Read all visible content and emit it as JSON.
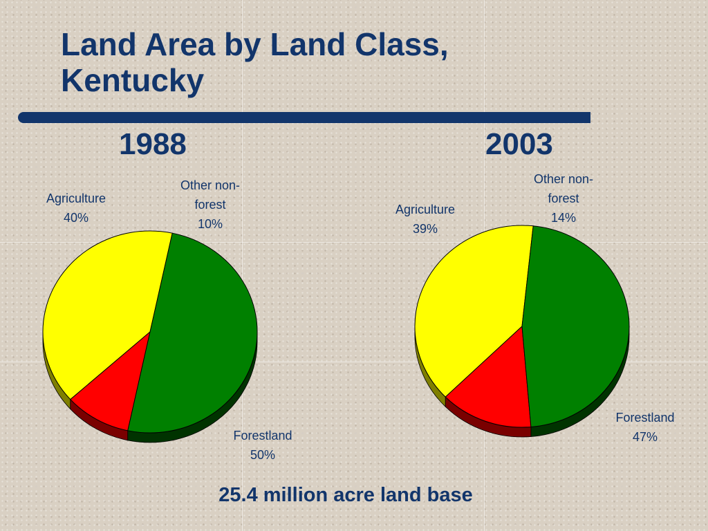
{
  "slide": {
    "title_line1": "Land Area by Land Class,",
    "title_line2": "Kentucky",
    "footnote": "25.4 million acre land base"
  },
  "chart_data": [
    {
      "type": "pie",
      "title": "1988",
      "categories": [
        "Agriculture",
        "Other non-forest",
        "Forestland"
      ],
      "values": [
        40,
        10,
        50
      ],
      "unit": "%",
      "colors": [
        "#ffff00",
        "#ff0000",
        "#008000"
      ],
      "labels": [
        {
          "lines": [
            "Agriculture",
            "40%"
          ]
        },
        {
          "lines": [
            "Other non-",
            "forest",
            "10%"
          ]
        },
        {
          "lines": [
            "Forestland",
            "50%"
          ]
        }
      ]
    },
    {
      "type": "pie",
      "title": "2003",
      "categories": [
        "Agriculture",
        "Other non-forest",
        "Forestland"
      ],
      "values": [
        39,
        14,
        47
      ],
      "unit": "%",
      "colors": [
        "#ffff00",
        "#ff0000",
        "#008000"
      ],
      "labels": [
        {
          "lines": [
            "Agriculture",
            "39%"
          ]
        },
        {
          "lines": [
            "Other non-",
            "forest",
            "14%"
          ]
        },
        {
          "lines": [
            "Forestland",
            "47%"
          ]
        }
      ]
    }
  ]
}
